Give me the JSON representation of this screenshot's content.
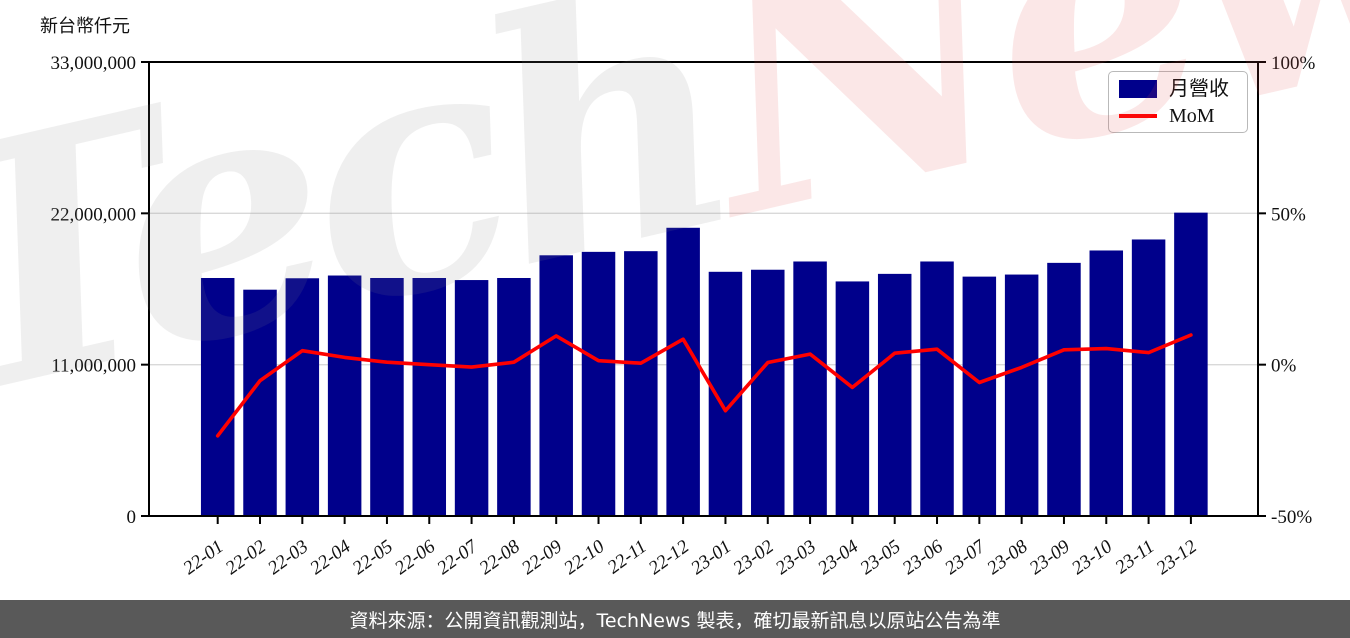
{
  "unit_label": "新台幣仟元",
  "legend": {
    "bar_label": "月營收",
    "line_label": "MoM"
  },
  "watermark": {
    "part1": "Tech",
    "part2": "News"
  },
  "footer": {
    "text": "資料來源：公開資訊觀測站，TechNews 製表，確切最新訊息以原站公告為準"
  },
  "colors": {
    "bar": "#00008B",
    "line": "#FF0000",
    "grid": "#d9d9d9",
    "spine": "#000000",
    "footer_bg": "#595959"
  },
  "chart_data": {
    "type": "bar",
    "title": "",
    "xlabel": "",
    "ylabel": "新台幣仟元",
    "grid": "horizontal",
    "legend_position": "upper right",
    "categories": [
      "22-01",
      "22-02",
      "22-03",
      "22-04",
      "22-05",
      "22-06",
      "22-07",
      "22-08",
      "22-09",
      "22-10",
      "22-11",
      "22-12",
      "23-01",
      "23-02",
      "23-03",
      "23-04",
      "23-05",
      "23-06",
      "23-07",
      "23-08",
      "23-09",
      "23-10",
      "23-11",
      "23-12"
    ],
    "series": [
      {
        "name": "月營收",
        "type": "bar",
        "axis": "left",
        "values": [
          17300000,
          16450000,
          17280000,
          17480000,
          17300000,
          17300000,
          17150000,
          17300000,
          18950000,
          19200000,
          19250000,
          20950000,
          17750000,
          17900000,
          18500000,
          17050000,
          17600000,
          18500000,
          17400000,
          17550000,
          18400000,
          19300000,
          20100000,
          22050000
        ]
      },
      {
        "name": "MoM",
        "type": "line",
        "axis": "right",
        "values": [
          -23.5,
          -5.3,
          4.6,
          2.4,
          0.8,
          0.0,
          -0.8,
          0.8,
          9.5,
          1.3,
          0.5,
          8.4,
          -15.2,
          0.7,
          3.5,
          -7.5,
          3.8,
          5.1,
          -5.9,
          -0.9,
          4.9,
          5.3,
          4.0,
          9.8
        ]
      }
    ],
    "left_axis": {
      "unit": "新台幣仟元",
      "range": [
        0,
        33000000
      ],
      "ticks": [
        0,
        11000000,
        22000000,
        33000000
      ],
      "tick_labels": [
        "0",
        "11,000,000",
        "22,000,000",
        "33,000,000"
      ]
    },
    "right_axis": {
      "unit": "%",
      "range": [
        -50,
        100
      ],
      "ticks": [
        -50,
        0,
        50,
        100
      ],
      "tick_labels": [
        "-50%",
        "0%",
        "50%",
        "100%"
      ]
    },
    "gridline_values_left": [
      11000000,
      22000000
    ]
  }
}
